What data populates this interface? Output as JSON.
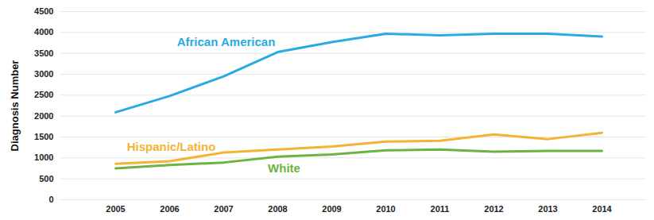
{
  "chart_data": {
    "type": "line",
    "y_label": "Diagnosis Number",
    "categories": [
      "2005",
      "2006",
      "2007",
      "2008",
      "2009",
      "2010",
      "2011",
      "2012",
      "2013",
      "2014"
    ],
    "series": [
      {
        "name": "African American",
        "color": "#29abe2",
        "values": [
          2090,
          2480,
          2950,
          3530,
          3770,
          3970,
          3930,
          3970,
          3970,
          3900
        ]
      },
      {
        "name": "Hispanic/Latino",
        "color": "#f5b335",
        "values": [
          860,
          920,
          1130,
          1200,
          1270,
          1390,
          1410,
          1560,
          1450,
          1600
        ]
      },
      {
        "name": "White",
        "color": "#6db33f",
        "values": [
          750,
          830,
          890,
          1030,
          1080,
          1180,
          1200,
          1150,
          1170,
          1170
        ]
      }
    ],
    "ylim": [
      0,
      4500
    ],
    "yticks": [
      0,
      500,
      1000,
      1500,
      2000,
      2500,
      3000,
      3500,
      4000,
      4500
    ],
    "grid": true
  }
}
